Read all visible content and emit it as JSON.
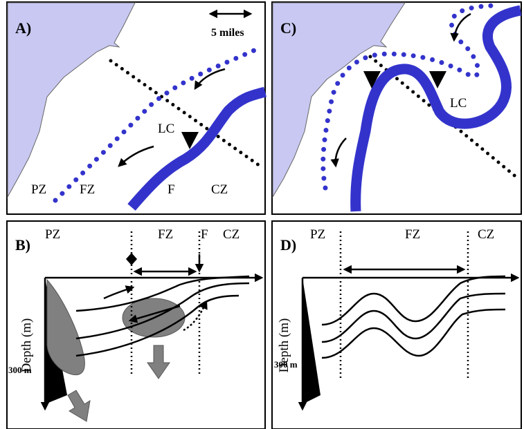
{
  "panels": [
    {
      "label": "A)",
      "scale": "5 miles",
      "labels": [
        "LC",
        "PZ",
        "FZ",
        "F",
        "CZ"
      ]
    },
    {
      "label": "C)",
      "labels": [
        "LC"
      ]
    },
    {
      "label": "B)",
      "labels": [
        "PZ",
        "FZ",
        "F",
        "CZ"
      ],
      "axis_label": "Depth (m)",
      "depth": "300 m"
    },
    {
      "label": "D)",
      "labels": [
        "PZ",
        "FZ",
        "CZ"
      ],
      "axis_label": "Depth (m)",
      "depth": "300 m"
    }
  ]
}
